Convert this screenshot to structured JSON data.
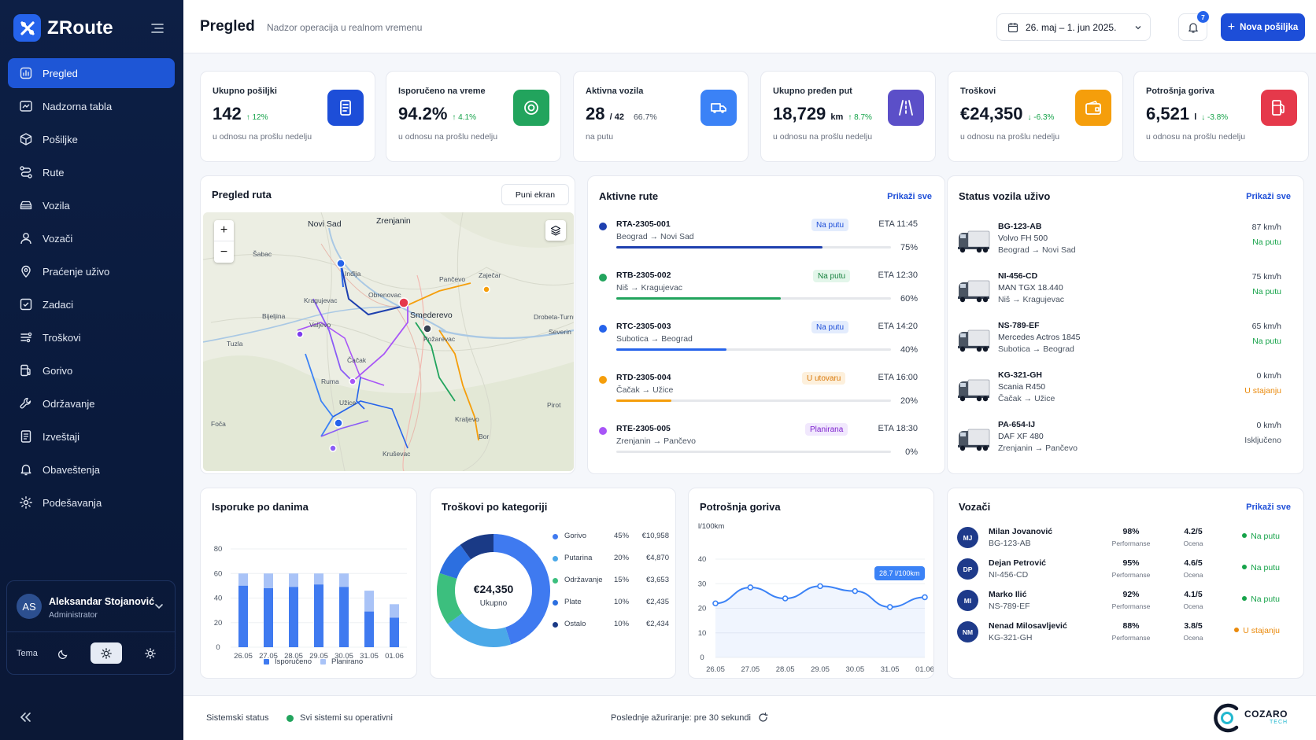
{
  "brand": {
    "name": "ZRoute"
  },
  "nav": [
    {
      "label": "Pregled",
      "icon": "overview-icon",
      "active": true
    },
    {
      "label": "Nadzorna tabla",
      "icon": "dashboard-icon"
    },
    {
      "label": "Pošiljke",
      "icon": "package-icon"
    },
    {
      "label": "Rute",
      "icon": "route-icon"
    },
    {
      "label": "Vozila",
      "icon": "car-icon"
    },
    {
      "label": "Vozači",
      "icon": "user-icon"
    },
    {
      "label": "Praćenje uživo",
      "icon": "location-pin-icon"
    },
    {
      "label": "Zadaci",
      "icon": "tasks-icon"
    },
    {
      "label": "Troškovi",
      "icon": "costs-icon"
    },
    {
      "label": "Gorivo",
      "icon": "fuel-icon"
    },
    {
      "label": "Održavanje",
      "icon": "wrench-icon"
    },
    {
      "label": "Izveštaji",
      "icon": "report-icon"
    },
    {
      "label": "Obaveštenja",
      "icon": "bell-icon"
    },
    {
      "label": "Podešavanja",
      "icon": "gear-icon"
    }
  ],
  "user": {
    "initials": "AS",
    "name": "Aleksandar Stojanović",
    "role": "Administrator",
    "theme_label": "Tema"
  },
  "header": {
    "title": "Pregled",
    "subtitle": "Nadzor operacija u realnom vremenu",
    "date_range": "26. maj – 1. jun 2025.",
    "notifications": "7",
    "new_button": "Nova pošiljka"
  },
  "kpis": [
    {
      "label": "Ukupno pošiljki",
      "value": "142",
      "unit": "",
      "extra": "",
      "delta": "↑ 12%",
      "sub": "u odnosu na prošlu nedelju",
      "icon": "document-icon",
      "color": "#1d4ed8"
    },
    {
      "label": "Isporučeno na vreme",
      "value": "94.2%",
      "unit": "",
      "extra": "",
      "delta": "↑ 4.1%",
      "sub": "u odnosu na prošlu nedelju",
      "icon": "target-icon",
      "color": "#22a45d"
    },
    {
      "label": "Aktivna vozila",
      "value": "28",
      "unit": "/ 42",
      "extra": "66.7%",
      "delta": "",
      "sub": "na putu",
      "icon": "truck-icon",
      "color": "#3b82f6"
    },
    {
      "label": "Ukupno pređen put",
      "value": "18,729",
      "unit": "km",
      "extra": "",
      "delta": "↑ 8.7%",
      "sub": "u odnosu na prošlu nedelju",
      "icon": "road-icon",
      "color": "#5b4fc8"
    },
    {
      "label": "Troškovi",
      "value": "€24,350",
      "unit": "",
      "extra": "",
      "delta": "↓ -6.3%",
      "sub": "u odnosu na prošlu nedelju",
      "icon": "wallet-icon",
      "color": "#f59e0b"
    },
    {
      "label": "Potrošnja goriva",
      "value": "6,521",
      "unit": "l",
      "extra": "",
      "delta": "↓ -3.8%",
      "sub": "u odnosu na prošlu nedelju",
      "icon": "fuel-pump-icon",
      "color": "#e5394b"
    }
  ],
  "map": {
    "title": "Pregled ruta",
    "fullscreen": "Puni ekran",
    "zoom_in": "+",
    "zoom_out": "−",
    "labels": [
      "Novi Sad",
      "Zrenjanin",
      "Šabac",
      "Bijeljina",
      "Tuzla",
      "Valjevo",
      "Kragujevac",
      "Čačak",
      "Kruševac",
      "Smederevo",
      "Požarevac",
      "Drobeta-Turnu",
      "Severin",
      "Pančevo",
      "Užice",
      "Foča",
      "Kraljevo",
      "Pirot",
      "Bor",
      "Zaječar",
      "Inđija",
      "Ruma",
      "Obrenovac"
    ]
  },
  "routes": {
    "title": "Aktivne rute",
    "link": "Prikaži sve",
    "items": [
      {
        "id": "RTA-2305-001",
        "path": "Beograd → Novi Sad",
        "status": "Na putu",
        "eta": "ETA 11:45",
        "pct": "75%",
        "progress": 0.75,
        "color": "#1e40af",
        "badge_bg": "#e3ecfd",
        "badge_fg": "#1d4ed8"
      },
      {
        "id": "RTB-2305-002",
        "path": "Niš → Kragujevac",
        "status": "Na putu",
        "eta": "ETA 12:30",
        "pct": "60%",
        "progress": 0.6,
        "color": "#22a45d",
        "badge_bg": "#e3f6ea",
        "badge_fg": "#15803d"
      },
      {
        "id": "RTC-2305-003",
        "path": "Subotica → Beograd",
        "status": "Na putu",
        "eta": "ETA 14:20",
        "pct": "40%",
        "progress": 0.4,
        "color": "#2563eb",
        "badge_bg": "#e3ecfd",
        "badge_fg": "#1d4ed8"
      },
      {
        "id": "RTD-2305-004",
        "path": "Čačak → Užice",
        "status": "U utovaru",
        "eta": "ETA 16:00",
        "pct": "20%",
        "progress": 0.2,
        "color": "#f59e0b",
        "badge_bg": "#fdf0dc",
        "badge_fg": "#d97706"
      },
      {
        "id": "RTE-2305-005",
        "path": "Zrenjanin → Pančevo",
        "status": "Planirana",
        "eta": "ETA 18:30",
        "pct": "0%",
        "progress": 0.0,
        "color": "#a855f7",
        "badge_bg": "#f1e8fd",
        "badge_fg": "#7e22ce"
      }
    ]
  },
  "vehicles": {
    "title": "Status vozila uživo",
    "link": "Prikaži sve",
    "items": [
      {
        "id": "BG-123-AB",
        "model": "Volvo FH 500",
        "route": "Beograd → Novi Sad",
        "speed": "87 km/h",
        "status": "Na putu",
        "status_color": "#16a34a"
      },
      {
        "id": "NI-456-CD",
        "model": "MAN TGX 18.440",
        "route": "Niš → Kragujevac",
        "speed": "75 km/h",
        "status": "Na putu",
        "status_color": "#16a34a"
      },
      {
        "id": "NS-789-EF",
        "model": "Mercedes Actros 1845",
        "route": "Subotica → Beograd",
        "speed": "65 km/h",
        "status": "Na putu",
        "status_color": "#16a34a"
      },
      {
        "id": "KG-321-GH",
        "model": "Scania R450",
        "route": "Čačak → Užice",
        "speed": "0 km/h",
        "status": "U stajanju",
        "status_color": "#ea8a0c"
      },
      {
        "id": "PA-654-IJ",
        "model": "DAF XF 480",
        "route": "Zrenjanin → Pančevo",
        "speed": "0 km/h",
        "status": "Isključeno",
        "status_color": "#4b5563"
      }
    ]
  },
  "deliveries": {
    "title": "Isporuke po danima",
    "legend": [
      "Isporučeno",
      "Planirano"
    ]
  },
  "costs": {
    "title": "Troškovi po kategoriji",
    "center_value": "€24,350",
    "center_label": "Ukupno"
  },
  "fuel": {
    "title": "Potrošnja goriva",
    "unit_label": "l/100km",
    "tooltip": "28.7 l/100km"
  },
  "drivers": {
    "title": "Vozači",
    "link": "Prikaži sve",
    "perf_label": "Performanse",
    "rating_label": "Ocena",
    "items": [
      {
        "initials": "MJ",
        "name": "Milan Jovanović",
        "vehicle": "BG-123-AB",
        "perf": "98%",
        "rating": "4.2/5",
        "status": "Na putu",
        "status_color": "#16a34a"
      },
      {
        "initials": "DP",
        "name": "Dejan Petrović",
        "vehicle": "NI-456-CD",
        "perf": "95%",
        "rating": "4.6/5",
        "status": "Na putu",
        "status_color": "#16a34a"
      },
      {
        "initials": "MI",
        "name": "Marko Ilić",
        "vehicle": "NS-789-EF",
        "perf": "92%",
        "rating": "4.1/5",
        "status": "Na putu",
        "status_color": "#16a34a"
      },
      {
        "initials": "NM",
        "name": "Nenad Milosavljević",
        "vehicle": "KG-321-GH",
        "perf": "88%",
        "rating": "3.8/5",
        "status": "U stajanju",
        "status_color": "#ea8a0c"
      }
    ]
  },
  "footer": {
    "system_label": "Sistemski status",
    "system_status": "Svi sistemi su operativni",
    "last_update": "Poslednje ažuriranje: pre 30 sekundi",
    "logo_name": "COZARO",
    "logo_sub": "TECH"
  },
  "chart_data": [
    {
      "type": "bar",
      "title": "Isporuke po danima",
      "categories": [
        "26.05",
        "27.05",
        "28.05",
        "29.05",
        "30.05",
        "31.05",
        "01.06"
      ],
      "series": [
        {
          "name": "Isporučeno",
          "values": [
            50,
            48,
            49,
            51,
            49,
            29,
            24
          ]
        },
        {
          "name": "Planirano",
          "values": [
            60,
            60,
            60,
            60,
            60,
            46,
            35
          ]
        }
      ],
      "ylim": [
        0,
        80
      ],
      "yticks": [
        0,
        20,
        40,
        60,
        80
      ],
      "colors": [
        "#3f7af0",
        "#a9c3f7"
      ]
    },
    {
      "type": "pie",
      "title": "Troškovi po kategoriji",
      "slices": [
        {
          "name": "Gorivo",
          "pct": "45%",
          "value": "€10,958",
          "share": 45,
          "color": "#3f7af0"
        },
        {
          "name": "Putarina",
          "pct": "20%",
          "value": "€4,870",
          "share": 20,
          "color": "#4aa8e8"
        },
        {
          "name": "Održavanje",
          "pct": "15%",
          "value": "€3,653",
          "share": 15,
          "color": "#3cbf7e"
        },
        {
          "name": "Plate",
          "pct": "10%",
          "value": "€2,435",
          "share": 10,
          "color": "#2c6fe0"
        },
        {
          "name": "Ostalo",
          "pct": "10%",
          "value": "€2,434",
          "share": 10,
          "color": "#1a3a86"
        }
      ]
    },
    {
      "type": "line",
      "title": "Potrošnja goriva",
      "ylabel": "l/100km",
      "categories": [
        "26.05",
        "27.05",
        "28.05",
        "29.05",
        "30.05",
        "31.05",
        "01.06"
      ],
      "series": [
        {
          "values": [
            22,
            28.5,
            24,
            29,
            27,
            20.5,
            24.5
          ]
        }
      ],
      "ylim": [
        0,
        40
      ],
      "yticks": [
        0,
        10,
        20,
        30,
        40
      ],
      "color": "#3b82f6"
    }
  ]
}
